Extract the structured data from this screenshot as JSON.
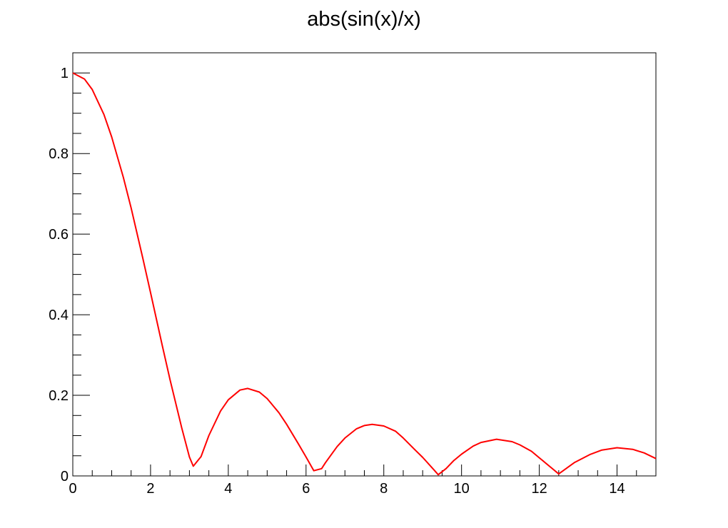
{
  "chart_data": {
    "type": "line",
    "title": "abs(sin(x)/x)",
    "xlabel": "",
    "ylabel": "",
    "xlim": [
      0,
      15
    ],
    "ylim": [
      0,
      1.05
    ],
    "x_ticks": [
      0,
      2,
      4,
      6,
      8,
      10,
      12,
      14
    ],
    "x_tick_labels": [
      "0",
      "2",
      "4",
      "6",
      "8",
      "10",
      "12",
      "14"
    ],
    "y_ticks": [
      0,
      0.2,
      0.4,
      0.6,
      0.8,
      1
    ],
    "y_tick_labels": [
      "0",
      "0.2",
      "0.4",
      "0.6",
      "0.8",
      "1"
    ],
    "grid": false,
    "legend": "none",
    "series": [
      {
        "color": "#ff0000",
        "x": [
          0.0,
          0.3,
          0.5,
          0.8,
          1.0,
          1.3,
          1.5,
          1.8,
          2.0,
          2.3,
          2.5,
          2.8,
          3.0,
          3.1,
          3.3,
          3.5,
          3.8,
          4.0,
          4.3,
          4.5,
          4.8,
          5.0,
          5.3,
          5.5,
          5.8,
          6.0,
          6.2,
          6.4,
          6.5,
          6.8,
          7.0,
          7.3,
          7.5,
          7.7,
          8.0,
          8.3,
          8.5,
          8.8,
          9.0,
          9.3,
          9.4,
          9.6,
          9.8,
          10.0,
          10.3,
          10.5,
          10.9,
          11.3,
          11.5,
          11.8,
          12.0,
          12.3,
          12.5,
          12.7,
          12.9,
          13.3,
          13.6,
          14.0,
          14.4,
          14.7,
          15.0
        ],
        "y": [
          1.0,
          0.985,
          0.959,
          0.897,
          0.841,
          0.741,
          0.665,
          0.541,
          0.455,
          0.324,
          0.239,
          0.12,
          0.047,
          0.024,
          0.048,
          0.1,
          0.161,
          0.189,
          0.213,
          0.217,
          0.208,
          0.192,
          0.157,
          0.128,
          0.08,
          0.047,
          0.013,
          0.018,
          0.033,
          0.073,
          0.094,
          0.117,
          0.125,
          0.128,
          0.124,
          0.111,
          0.094,
          0.065,
          0.046,
          0.014,
          0.003,
          0.018,
          0.038,
          0.054,
          0.074,
          0.083,
          0.091,
          0.085,
          0.077,
          0.061,
          0.045,
          0.021,
          0.005,
          0.019,
          0.033,
          0.053,
          0.064,
          0.07,
          0.066,
          0.057,
          0.043
        ]
      }
    ]
  }
}
